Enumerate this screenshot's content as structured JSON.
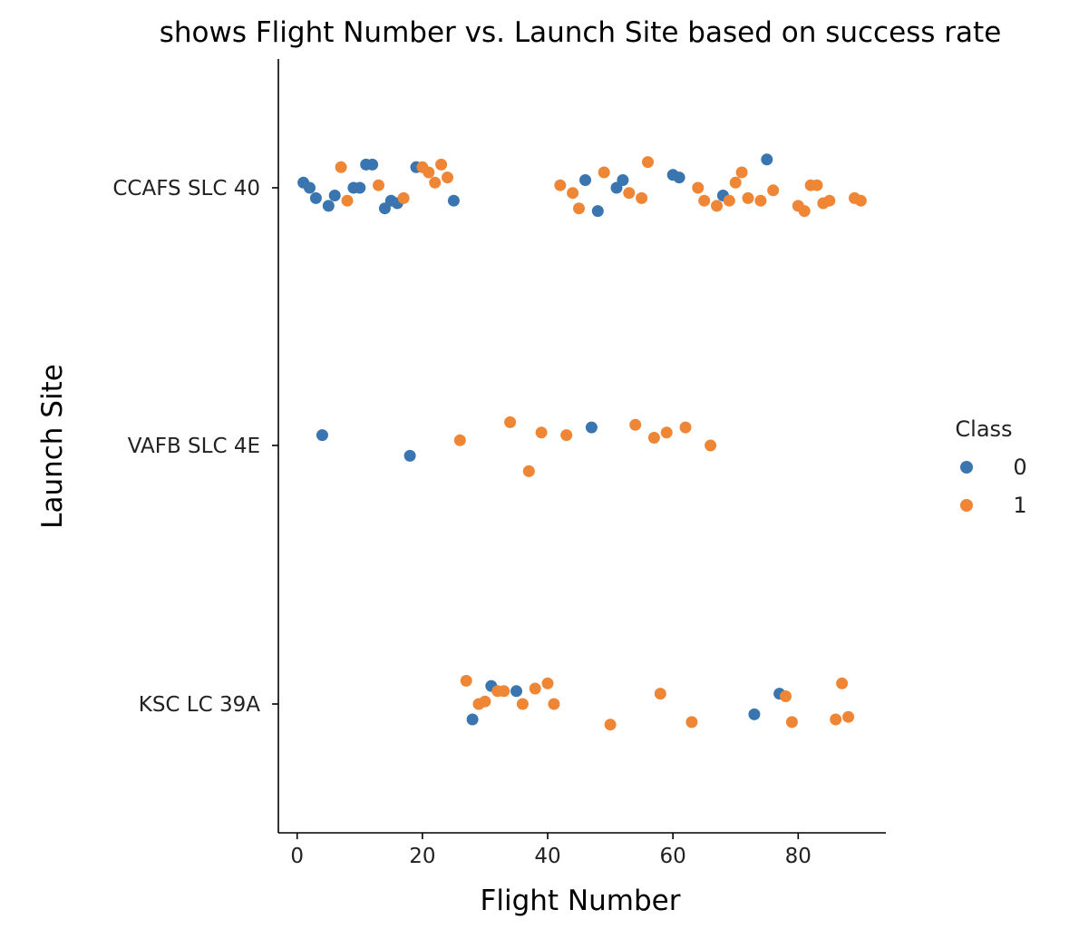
{
  "chart_data": {
    "type": "scatter",
    "title": "shows Flight Number vs. Launch Site based on success rate",
    "xlabel": "Flight Number",
    "ylabel": "Launch Site",
    "xlim": [
      -3,
      94
    ],
    "x_ticks": [
      0,
      20,
      40,
      60,
      80
    ],
    "categories": [
      "CCAFS SLC 40",
      "VAFB SLC 4E",
      "KSC LC 39A"
    ],
    "legend": {
      "title": "Class",
      "position": "right",
      "entries": [
        "0",
        "1"
      ]
    },
    "colors": {
      "0": "#3a75b0",
      "1": "#ef8636"
    },
    "grid": false,
    "series": [
      {
        "name": "0",
        "points": [
          {
            "x": 1,
            "site": "CCAFS SLC 40",
            "jitter": 0.02
          },
          {
            "x": 2,
            "site": "CCAFS SLC 40",
            "jitter": 0.0
          },
          {
            "x": 3,
            "site": "CCAFS SLC 40",
            "jitter": -0.04
          },
          {
            "x": 5,
            "site": "CCAFS SLC 40",
            "jitter": -0.07
          },
          {
            "x": 6,
            "site": "CCAFS SLC 40",
            "jitter": -0.03
          },
          {
            "x": 9,
            "site": "CCAFS SLC 40",
            "jitter": 0.0
          },
          {
            "x": 10,
            "site": "CCAFS SLC 40",
            "jitter": 0.0
          },
          {
            "x": 11,
            "site": "CCAFS SLC 40",
            "jitter": 0.09
          },
          {
            "x": 12,
            "site": "CCAFS SLC 40",
            "jitter": 0.09
          },
          {
            "x": 14,
            "site": "CCAFS SLC 40",
            "jitter": -0.08
          },
          {
            "x": 15,
            "site": "CCAFS SLC 40",
            "jitter": -0.05
          },
          {
            "x": 16,
            "site": "CCAFS SLC 40",
            "jitter": -0.06
          },
          {
            "x": 19,
            "site": "CCAFS SLC 40",
            "jitter": 0.08
          },
          {
            "x": 25,
            "site": "CCAFS SLC 40",
            "jitter": -0.05
          },
          {
            "x": 46,
            "site": "CCAFS SLC 40",
            "jitter": 0.03
          },
          {
            "x": 48,
            "site": "CCAFS SLC 40",
            "jitter": -0.09
          },
          {
            "x": 51,
            "site": "CCAFS SLC 40",
            "jitter": 0.0
          },
          {
            "x": 52,
            "site": "CCAFS SLC 40",
            "jitter": 0.03
          },
          {
            "x": 60,
            "site": "CCAFS SLC 40",
            "jitter": 0.05
          },
          {
            "x": 61,
            "site": "CCAFS SLC 40",
            "jitter": 0.04
          },
          {
            "x": 68,
            "site": "CCAFS SLC 40",
            "jitter": -0.03
          },
          {
            "x": 75,
            "site": "CCAFS SLC 40",
            "jitter": 0.11
          },
          {
            "x": 4,
            "site": "VAFB SLC 4E",
            "jitter": 0.04
          },
          {
            "x": 18,
            "site": "VAFB SLC 4E",
            "jitter": -0.04
          },
          {
            "x": 47,
            "site": "VAFB SLC 4E",
            "jitter": 0.07
          },
          {
            "x": 28,
            "site": "KSC LC 39A",
            "jitter": -0.06
          },
          {
            "x": 31,
            "site": "KSC LC 39A",
            "jitter": 0.07
          },
          {
            "x": 35,
            "site": "KSC LC 39A",
            "jitter": 0.05
          },
          {
            "x": 73,
            "site": "KSC LC 39A",
            "jitter": -0.04
          },
          {
            "x": 77,
            "site": "KSC LC 39A",
            "jitter": 0.04
          }
        ]
      },
      {
        "name": "1",
        "points": [
          {
            "x": 7,
            "site": "CCAFS SLC 40",
            "jitter": 0.08
          },
          {
            "x": 8,
            "site": "CCAFS SLC 40",
            "jitter": -0.05
          },
          {
            "x": 13,
            "site": "CCAFS SLC 40",
            "jitter": 0.01
          },
          {
            "x": 17,
            "site": "CCAFS SLC 40",
            "jitter": -0.04
          },
          {
            "x": 20,
            "site": "CCAFS SLC 40",
            "jitter": 0.08
          },
          {
            "x": 21,
            "site": "CCAFS SLC 40",
            "jitter": 0.06
          },
          {
            "x": 22,
            "site": "CCAFS SLC 40",
            "jitter": 0.02
          },
          {
            "x": 23,
            "site": "CCAFS SLC 40",
            "jitter": 0.09
          },
          {
            "x": 24,
            "site": "CCAFS SLC 40",
            "jitter": 0.04
          },
          {
            "x": 42,
            "site": "CCAFS SLC 40",
            "jitter": 0.01
          },
          {
            "x": 44,
            "site": "CCAFS SLC 40",
            "jitter": -0.02
          },
          {
            "x": 45,
            "site": "CCAFS SLC 40",
            "jitter": -0.08
          },
          {
            "x": 49,
            "site": "CCAFS SLC 40",
            "jitter": 0.06
          },
          {
            "x": 53,
            "site": "CCAFS SLC 40",
            "jitter": -0.02
          },
          {
            "x": 55,
            "site": "CCAFS SLC 40",
            "jitter": -0.04
          },
          {
            "x": 56,
            "site": "CCAFS SLC 40",
            "jitter": 0.1
          },
          {
            "x": 64,
            "site": "CCAFS SLC 40",
            "jitter": 0.0
          },
          {
            "x": 65,
            "site": "CCAFS SLC 40",
            "jitter": -0.05
          },
          {
            "x": 67,
            "site": "CCAFS SLC 40",
            "jitter": -0.07
          },
          {
            "x": 69,
            "site": "CCAFS SLC 40",
            "jitter": -0.05
          },
          {
            "x": 70,
            "site": "CCAFS SLC 40",
            "jitter": 0.02
          },
          {
            "x": 71,
            "site": "CCAFS SLC 40",
            "jitter": 0.06
          },
          {
            "x": 72,
            "site": "CCAFS SLC 40",
            "jitter": -0.04
          },
          {
            "x": 74,
            "site": "CCAFS SLC 40",
            "jitter": -0.05
          },
          {
            "x": 76,
            "site": "CCAFS SLC 40",
            "jitter": -0.01
          },
          {
            "x": 80,
            "site": "CCAFS SLC 40",
            "jitter": -0.07
          },
          {
            "x": 81,
            "site": "CCAFS SLC 40",
            "jitter": -0.09
          },
          {
            "x": 82,
            "site": "CCAFS SLC 40",
            "jitter": 0.01
          },
          {
            "x": 83,
            "site": "CCAFS SLC 40",
            "jitter": 0.01
          },
          {
            "x": 84,
            "site": "CCAFS SLC 40",
            "jitter": -0.06
          },
          {
            "x": 85,
            "site": "CCAFS SLC 40",
            "jitter": -0.05
          },
          {
            "x": 89,
            "site": "CCAFS SLC 40",
            "jitter": -0.04
          },
          {
            "x": 90,
            "site": "CCAFS SLC 40",
            "jitter": -0.05
          },
          {
            "x": 26,
            "site": "VAFB SLC 4E",
            "jitter": 0.02
          },
          {
            "x": 34,
            "site": "VAFB SLC 4E",
            "jitter": 0.09
          },
          {
            "x": 37,
            "site": "VAFB SLC 4E",
            "jitter": -0.1
          },
          {
            "x": 39,
            "site": "VAFB SLC 4E",
            "jitter": 0.05
          },
          {
            "x": 43,
            "site": "VAFB SLC 4E",
            "jitter": 0.04
          },
          {
            "x": 54,
            "site": "VAFB SLC 4E",
            "jitter": 0.08
          },
          {
            "x": 57,
            "site": "VAFB SLC 4E",
            "jitter": 0.03
          },
          {
            "x": 59,
            "site": "VAFB SLC 4E",
            "jitter": 0.05
          },
          {
            "x": 62,
            "site": "VAFB SLC 4E",
            "jitter": 0.07
          },
          {
            "x": 66,
            "site": "VAFB SLC 4E",
            "jitter": 0.0
          },
          {
            "x": 27,
            "site": "KSC LC 39A",
            "jitter": 0.09
          },
          {
            "x": 29,
            "site": "KSC LC 39A",
            "jitter": 0.0
          },
          {
            "x": 30,
            "site": "KSC LC 39A",
            "jitter": 0.01
          },
          {
            "x": 32,
            "site": "KSC LC 39A",
            "jitter": 0.05
          },
          {
            "x": 33,
            "site": "KSC LC 39A",
            "jitter": 0.05
          },
          {
            "x": 36,
            "site": "KSC LC 39A",
            "jitter": 0.0
          },
          {
            "x": 38,
            "site": "KSC LC 39A",
            "jitter": 0.06
          },
          {
            "x": 40,
            "site": "KSC LC 39A",
            "jitter": 0.08
          },
          {
            "x": 41,
            "site": "KSC LC 39A",
            "jitter": 0.0
          },
          {
            "x": 50,
            "site": "KSC LC 39A",
            "jitter": -0.08
          },
          {
            "x": 58,
            "site": "KSC LC 39A",
            "jitter": 0.04
          },
          {
            "x": 63,
            "site": "KSC LC 39A",
            "jitter": -0.07
          },
          {
            "x": 78,
            "site": "KSC LC 39A",
            "jitter": 0.03
          },
          {
            "x": 79,
            "site": "KSC LC 39A",
            "jitter": -0.07
          },
          {
            "x": 86,
            "site": "KSC LC 39A",
            "jitter": -0.06
          },
          {
            "x": 87,
            "site": "KSC LC 39A",
            "jitter": 0.08
          },
          {
            "x": 88,
            "site": "KSC LC 39A",
            "jitter": -0.05
          }
        ]
      }
    ]
  }
}
